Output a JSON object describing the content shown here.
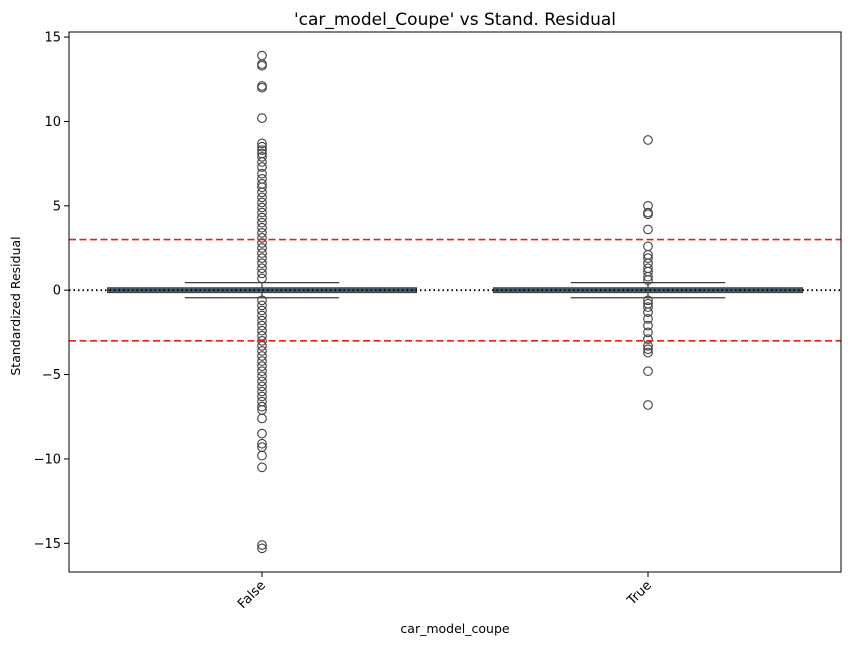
{
  "chart_data": {
    "type": "box",
    "title": "'car_model_Coupe' vs Stand. Residual",
    "xlabel": "car_model_coupe",
    "ylabel": "Standardized Residual",
    "categories": [
      "False",
      "True"
    ],
    "ylim": [
      -16.7,
      15.3
    ],
    "yticks": [
      -15,
      -10,
      -5,
      0,
      5,
      10,
      15
    ],
    "grid": false,
    "reference_lines": [
      {
        "y": 0,
        "style": "dotted",
        "color": "#000000"
      },
      {
        "y": 3,
        "style": "dashed",
        "color": "#e8201c"
      },
      {
        "y": -3,
        "style": "dashed",
        "color": "#e8201c"
      }
    ],
    "box_color": "#3a6f8f",
    "boxes": [
      {
        "category": "False",
        "q1": -0.05,
        "median": 0.0,
        "q3": 0.05,
        "whisker_low": -0.45,
        "whisker_high": 0.45,
        "outliers": [
          13.9,
          13.4,
          13.3,
          12.1,
          12.0,
          10.2,
          8.7,
          8.5,
          8.3,
          8.1,
          7.9,
          7.6,
          7.3,
          6.9,
          6.6,
          6.3,
          6.1,
          5.8,
          5.5,
          5.2,
          4.9,
          4.6,
          4.3,
          4.0,
          3.7,
          3.4,
          3.1,
          2.8,
          2.5,
          2.2,
          1.9,
          1.6,
          1.3,
          1.0,
          0.7,
          -0.6,
          -0.9,
          -1.2,
          -1.5,
          -1.8,
          -2.1,
          -2.4,
          -2.7,
          -3.0,
          -3.3,
          -3.6,
          -3.9,
          -4.2,
          -4.5,
          -4.8,
          -5.1,
          -5.4,
          -5.7,
          -6.0,
          -6.3,
          -6.6,
          -6.9,
          -7.1,
          -7.6,
          -8.5,
          -9.1,
          -9.3,
          -9.8,
          -10.5,
          -15.1,
          -15.3
        ]
      },
      {
        "category": "True",
        "q1": -0.05,
        "median": 0.0,
        "q3": 0.05,
        "whisker_low": -0.45,
        "whisker_high": 0.45,
        "outliers": [
          8.9,
          5.0,
          4.6,
          4.5,
          3.6,
          2.6,
          2.1,
          1.9,
          1.6,
          1.3,
          1.1,
          0.8,
          0.6,
          -0.6,
          -0.8,
          -1.0,
          -1.3,
          -1.7,
          -2.1,
          -2.5,
          -2.9,
          -3.3,
          -3.5,
          -3.7,
          -4.8,
          -6.8
        ]
      }
    ]
  }
}
